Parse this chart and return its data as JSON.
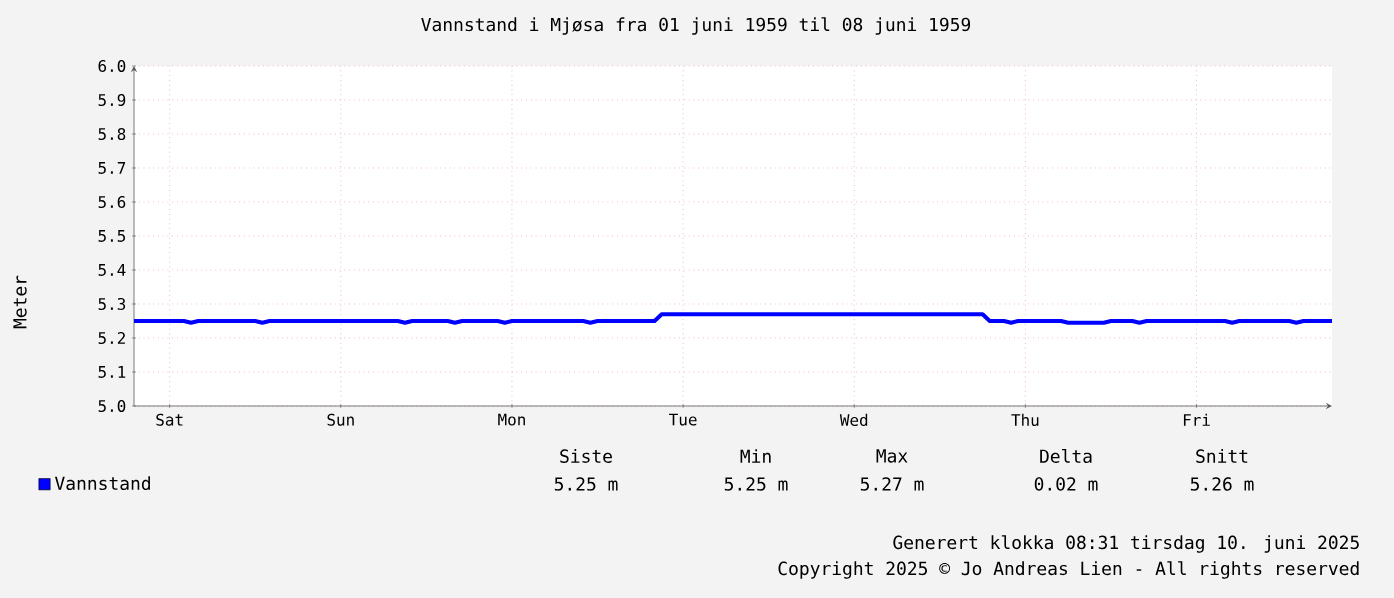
{
  "chart_data": {
    "type": "line",
    "title": "Vannstand i Mjøsa fra 01 juni 1959 til 08 juni 1959",
    "ylabel": "Meter",
    "categories": [
      null,
      null,
      null,
      null,
      null,
      "Sat",
      null,
      null,
      null,
      null,
      null,
      null,
      null,
      null,
      null,
      null,
      null,
      null,
      null,
      null,
      null,
      null,
      null,
      null,
      null,
      null,
      null,
      null,
      null,
      "Sun",
      null,
      null,
      null,
      null,
      null,
      null,
      null,
      null,
      null,
      null,
      null,
      null,
      null,
      null,
      null,
      null,
      null,
      null,
      null,
      null,
      null,
      null,
      null,
      "Mon",
      null,
      null,
      null,
      null,
      null,
      null,
      null,
      null,
      null,
      null,
      null,
      null,
      null,
      null,
      null,
      null,
      null,
      null,
      null,
      null,
      null,
      null,
      null,
      "Tue",
      null,
      null,
      null,
      null,
      null,
      null,
      null,
      null,
      null,
      null,
      null,
      null,
      null,
      null,
      null,
      null,
      null,
      null,
      null,
      null,
      null,
      null,
      null,
      "Wed",
      null,
      null,
      null,
      null,
      null,
      null,
      null,
      null,
      null,
      null,
      null,
      null,
      null,
      null,
      null,
      null,
      null,
      null,
      null,
      null,
      null,
      null,
      null,
      "Thu",
      null,
      null,
      null,
      null,
      null,
      null,
      null,
      null,
      null,
      null,
      null,
      null,
      null,
      null,
      null,
      null,
      null,
      null,
      null,
      null,
      null,
      null,
      null,
      "Fri",
      null,
      null,
      null,
      null,
      null,
      null,
      null,
      null,
      null,
      null,
      null,
      null,
      null,
      null,
      null,
      null,
      null,
      null,
      null
    ],
    "series": [
      {
        "name": "Vannstand",
        "color": "#0000ff",
        "values": [
          5.25,
          5.25,
          5.25,
          5.25,
          5.25,
          5.25,
          5.25,
          5.25,
          5.245,
          5.25,
          5.25,
          5.25,
          5.25,
          5.25,
          5.25,
          5.25,
          5.25,
          5.25,
          5.245,
          5.25,
          5.25,
          5.25,
          5.25,
          5.25,
          5.25,
          5.25,
          5.25,
          5.25,
          5.25,
          5.25,
          5.25,
          5.25,
          5.25,
          5.25,
          5.25,
          5.25,
          5.25,
          5.25,
          5.245,
          5.25,
          5.25,
          5.25,
          5.25,
          5.25,
          5.25,
          5.245,
          5.25,
          5.25,
          5.25,
          5.25,
          5.25,
          5.25,
          5.245,
          5.25,
          5.25,
          5.25,
          5.25,
          5.25,
          5.25,
          5.25,
          5.25,
          5.25,
          5.25,
          5.25,
          5.245,
          5.25,
          5.25,
          5.25,
          5.25,
          5.25,
          5.25,
          5.25,
          5.25,
          5.25,
          5.27,
          5.27,
          5.27,
          5.27,
          5.27,
          5.27,
          5.27,
          5.27,
          5.27,
          5.27,
          5.27,
          5.27,
          5.27,
          5.27,
          5.27,
          5.27,
          5.27,
          5.27,
          5.27,
          5.27,
          5.27,
          5.27,
          5.27,
          5.27,
          5.27,
          5.27,
          5.27,
          5.27,
          5.27,
          5.27,
          5.27,
          5.27,
          5.27,
          5.27,
          5.27,
          5.27,
          5.27,
          5.27,
          5.27,
          5.27,
          5.27,
          5.27,
          5.27,
          5.27,
          5.27,
          5.27,
          5.25,
          5.25,
          5.25,
          5.245,
          5.25,
          5.25,
          5.25,
          5.25,
          5.25,
          5.25,
          5.25,
          5.245,
          5.245,
          5.245,
          5.245,
          5.245,
          5.245,
          5.25,
          5.25,
          5.25,
          5.25,
          5.245,
          5.25,
          5.25,
          5.25,
          5.25,
          5.25,
          5.25,
          5.25,
          5.25,
          5.25,
          5.25,
          5.25,
          5.25,
          5.245,
          5.25,
          5.25,
          5.25,
          5.25,
          5.25,
          5.25,
          5.25,
          5.25,
          5.245,
          5.25,
          5.25,
          5.25,
          5.25,
          5.25
        ]
      }
    ],
    "ylim": [
      5.0,
      6.0
    ],
    "yticks": [
      {
        "value": 5.0,
        "label": "5.0"
      },
      {
        "value": 5.1,
        "label": "5.1"
      },
      {
        "value": 5.2,
        "label": "5.2"
      },
      {
        "value": 5.3,
        "label": "5.3"
      },
      {
        "value": 5.4,
        "label": "5.4"
      },
      {
        "value": 5.5,
        "label": "5.5"
      },
      {
        "value": 5.6,
        "label": "5.6"
      },
      {
        "value": 5.7,
        "label": "5.7"
      },
      {
        "value": 5.8,
        "label": "5.8"
      },
      {
        "value": 5.9,
        "label": "5.9"
      },
      {
        "value": 6.0,
        "label": "6.0"
      }
    ],
    "grid": true,
    "legend": "bottom left",
    "annotations": [
      "Siste",
      "Min",
      "Max",
      "Delta",
      "Snitt",
      "5.25 m",
      "5.25 m",
      "5.27 m",
      "0.02 m",
      "5.26 m",
      "Generert klokka 08:31 tirsdag 10. juni 2025",
      "Copyright 2025 © Jo Andreas Lien - All rights reserved"
    ]
  }
}
